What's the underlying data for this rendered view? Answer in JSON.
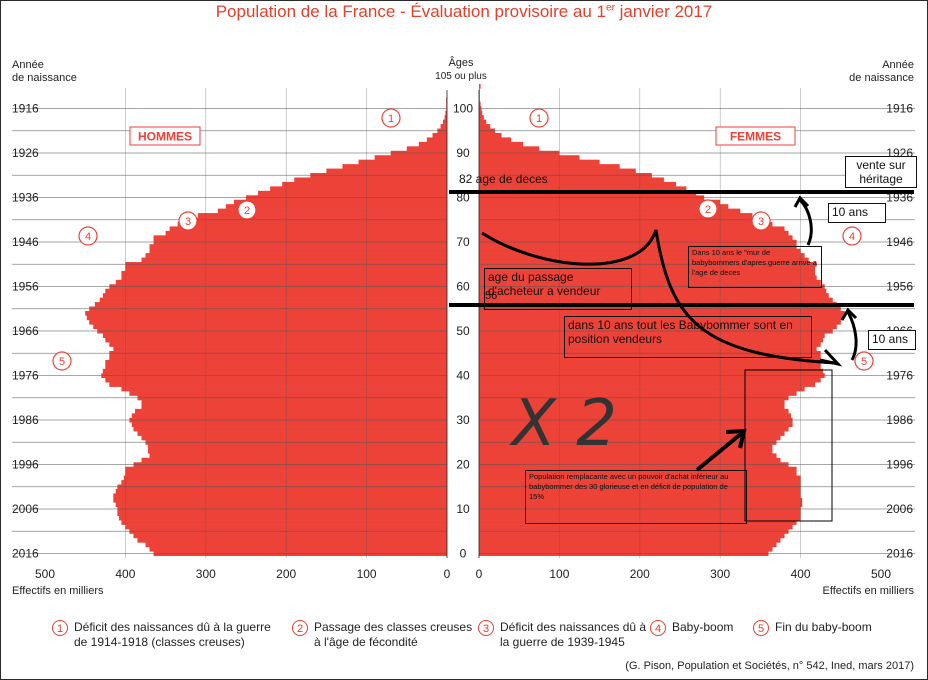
{
  "title_main": "Population de la France - Évaluation provisoire au 1",
  "title_sup": "er",
  "title_end": " janvier 2017",
  "header_left": [
    "Année",
    "de naissance"
  ],
  "header_right": [
    "Année",
    "de naissance"
  ],
  "header_center": [
    "Âges",
    "105 ou plus"
  ],
  "hommes_label": "HOMMES",
  "femmes_label": "FEMMES",
  "effectifs_left": "Effectifs en milliers",
  "effectifs_right": "Effectifs en milliers",
  "legend": [
    {
      "num": "1",
      "text": "Déficit des naissances dû à la guerre de 1914-1918 (classes creuses)"
    },
    {
      "num": "2",
      "text": "Passage des classes creuses à l'âge de fécondité"
    },
    {
      "num": "3",
      "text": "Déficit des naissances dû à la guerre de 1939-1945"
    },
    {
      "num": "4",
      "text": "Baby-boom"
    },
    {
      "num": "5",
      "text": "Fin du baby-boom"
    }
  ],
  "source": "(G. Pison, Population et Sociétés, n° 542, Ined, mars 2017)",
  "annotations": {
    "age_deces": "82 age de deces",
    "vente_heritage": "vente sur héritage",
    "dix_ans_top": "10 ans",
    "mur": "Dans 10 ans le \"mur de babybommers d'apres guerre arrive a l'age de deces",
    "passage": "age du passage d'acheteur a vendeur",
    "passage_age": "56",
    "vendeurs": "dans 10 ans tout les Babybommer sont en position vendeurs",
    "dix_ans_mid": "10 ans",
    "remplacante": "Population remplacante avec un pouvoir d'achat inférieur au babybommer des 30 glorieuse et en déficit de population de 15%",
    "x2": "X 2"
  },
  "colors": {
    "bar": "#ec4238",
    "title": "#e2412b",
    "grid": "#555555",
    "annotation_line": "#000000"
  },
  "chart_data": {
    "type": "population_pyramid",
    "ages": [
      0,
      1,
      2,
      3,
      4,
      5,
      6,
      7,
      8,
      9,
      10,
      11,
      12,
      13,
      14,
      15,
      16,
      17,
      18,
      19,
      20,
      21,
      22,
      23,
      24,
      25,
      26,
      27,
      28,
      29,
      30,
      31,
      32,
      33,
      34,
      35,
      36,
      37,
      38,
      39,
      40,
      41,
      42,
      43,
      44,
      45,
      46,
      47,
      48,
      49,
      50,
      51,
      52,
      53,
      54,
      55,
      56,
      57,
      58,
      59,
      60,
      61,
      62,
      63,
      64,
      65,
      66,
      67,
      68,
      69,
      70,
      71,
      72,
      73,
      74,
      75,
      76,
      77,
      78,
      79,
      80,
      81,
      82,
      83,
      84,
      85,
      86,
      87,
      88,
      89,
      90,
      91,
      92,
      93,
      94,
      95,
      96,
      97,
      98,
      99,
      100,
      101,
      102,
      103,
      104,
      105
    ],
    "hommes": [
      365,
      370,
      375,
      385,
      390,
      395,
      400,
      405,
      408,
      410,
      410,
      412,
      415,
      415,
      412,
      410,
      405,
      402,
      400,
      400,
      390,
      380,
      370,
      372,
      372,
      375,
      380,
      385,
      390,
      392,
      395,
      392,
      388,
      380,
      380,
      385,
      395,
      405,
      420,
      425,
      430,
      428,
      425,
      425,
      420,
      420,
      415,
      420,
      425,
      428,
      435,
      440,
      445,
      448,
      450,
      445,
      438,
      432,
      428,
      425,
      420,
      412,
      405,
      405,
      400,
      400,
      380,
      375,
      370,
      370,
      365,
      365,
      350,
      345,
      335,
      330,
      310,
      285,
      275,
      265,
      250,
      235,
      220,
      205,
      190,
      170,
      150,
      130,
      110,
      90,
      70,
      50,
      35,
      25,
      18,
      12,
      8,
      5,
      3,
      2,
      1,
      1,
      1,
      0,
      0,
      0
    ],
    "femmes": [
      360,
      365,
      370,
      375,
      380,
      385,
      390,
      395,
      400,
      400,
      400,
      402,
      402,
      400,
      400,
      400,
      400,
      400,
      395,
      395,
      385,
      375,
      370,
      365,
      365,
      370,
      375,
      380,
      385,
      390,
      390,
      388,
      385,
      380,
      380,
      385,
      395,
      405,
      418,
      425,
      430,
      428,
      425,
      425,
      425,
      425,
      420,
      425,
      428,
      430,
      440,
      445,
      450,
      452,
      455,
      450,
      445,
      440,
      435,
      432,
      430,
      425,
      420,
      418,
      418,
      420,
      410,
      405,
      400,
      395,
      395,
      390,
      385,
      380,
      365,
      355,
      340,
      325,
      310,
      300,
      280,
      270,
      258,
      245,
      230,
      215,
      195,
      175,
      150,
      125,
      100,
      75,
      55,
      40,
      28,
      20,
      14,
      9,
      6,
      4,
      3,
      2,
      1,
      1,
      1,
      2
    ],
    "x_ticks_left": [
      500,
      400,
      300,
      200,
      100,
      0
    ],
    "x_ticks_right": [
      0,
      100,
      200,
      300,
      400,
      500
    ],
    "age_ticks": [
      0,
      10,
      20,
      30,
      40,
      50,
      60,
      70,
      80,
      90,
      100
    ],
    "birth_year_ticks": [
      "1916",
      "1926",
      "1936",
      "1946",
      "1956",
      "1966",
      "1976",
      "1986",
      "1996",
      "2006",
      "2016"
    ],
    "xlim": [
      0,
      500
    ]
  }
}
